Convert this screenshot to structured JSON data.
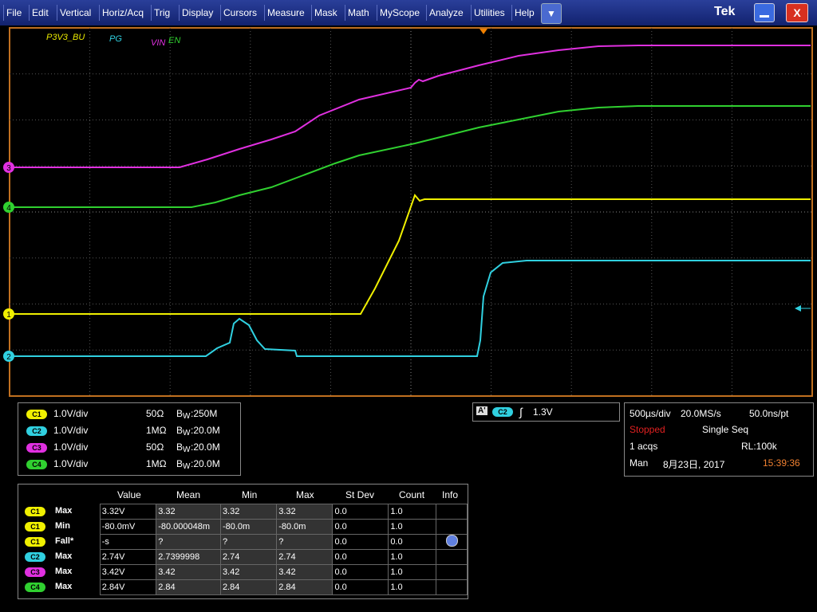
{
  "menu": [
    "File",
    "Edit",
    "Vertical",
    "Horiz/Acq",
    "Trig",
    "Display",
    "Cursors",
    "Measure",
    "Mask",
    "Math",
    "MyScope",
    "Analyze",
    "Utilities",
    "Help"
  ],
  "brand": "Tek",
  "close": "X",
  "waveform_labels": {
    "ch1": "P3V3_BU",
    "ch2": "PG",
    "ch3": "VIN",
    "ch4": "EN"
  },
  "channel_markers": {
    "ch1": "1",
    "ch2": "2",
    "ch3": "3",
    "ch4": "4"
  },
  "channels": [
    {
      "id": "C1",
      "scale": "1.0V/div",
      "impedance": "50Ω",
      "bw_symbol": "B",
      "bw_sub": "W",
      "bw_value": ":250M"
    },
    {
      "id": "C2",
      "scale": "1.0V/div",
      "impedance": "1MΩ",
      "bw_symbol": "B",
      "bw_sub": "W",
      "bw_value": ":20.0M"
    },
    {
      "id": "C3",
      "scale": "1.0V/div",
      "impedance": "50Ω",
      "bw_symbol": "B",
      "bw_sub": "W",
      "bw_value": ":20.0M"
    },
    {
      "id": "C4",
      "scale": "1.0V/div",
      "impedance": "1MΩ",
      "bw_symbol": "B",
      "bw_sub": "W",
      "bw_value": ":20.0M"
    }
  ],
  "trigger": {
    "badge": "A'",
    "channel": "C2",
    "level": "1.3V"
  },
  "acquisition": {
    "time_div": "500µs/div",
    "sample_rate": "20.0MS/s",
    "resolution": "50.0ns/pt",
    "state": "Stopped",
    "mode": "Single Seq",
    "acqs": "1 acqs",
    "record_length": "RL:100k",
    "day": "Man",
    "date": "8月23日, 2017",
    "time": "15:39:36"
  },
  "measurements": {
    "headers": [
      "Value",
      "Mean",
      "Min",
      "Max",
      "St Dev",
      "Count",
      "Info"
    ],
    "rows": [
      {
        "channel": "C1",
        "type": "Max",
        "cells": [
          "3.32V",
          "3.32",
          "3.32",
          "3.32",
          "0.0",
          "1.0"
        ]
      },
      {
        "channel": "C1",
        "type": "Min",
        "cells": [
          "-80.0mV",
          "-80.000048m",
          "-80.0m",
          "-80.0m",
          "0.0",
          "1.0"
        ]
      },
      {
        "channel": "C1",
        "type": "Fall*",
        "cells": [
          "-s",
          "?",
          "?",
          "?",
          "0.0",
          "0.0"
        ]
      },
      {
        "channel": "C2",
        "type": "Max",
        "cells": [
          "2.74V",
          "2.7399998",
          "2.74",
          "2.74",
          "0.0",
          "1.0"
        ]
      },
      {
        "channel": "C3",
        "type": "Max",
        "cells": [
          "3.42V",
          "3.42",
          "3.42",
          "3.42",
          "0.0",
          "1.0"
        ]
      },
      {
        "channel": "C4",
        "type": "Max",
        "cells": [
          "2.84V",
          "2.84",
          "2.84",
          "2.84",
          "0.0",
          "1.0"
        ]
      }
    ]
  }
}
